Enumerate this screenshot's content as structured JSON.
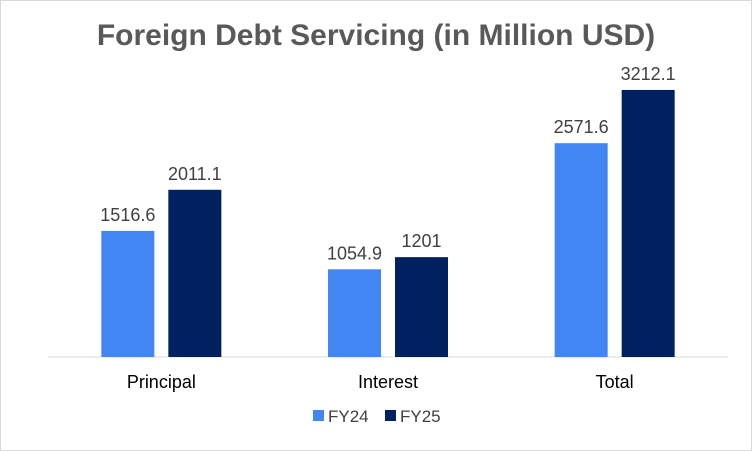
{
  "chart_data": {
    "type": "bar",
    "title": "Foreign Debt Servicing (in Million USD)",
    "categories": [
      "Principal",
      "Interest",
      "Total"
    ],
    "series": [
      {
        "name": "FY24",
        "values": [
          1516.6,
          1054.9,
          2571.6
        ],
        "labels": [
          "1516.6",
          "1054.9",
          "2571.6"
        ],
        "color": "#4286f4"
      },
      {
        "name": "FY25",
        "values": [
          2011.1,
          1201,
          3212.1
        ],
        "labels": [
          "2011.1",
          "1201",
          "3212.1"
        ],
        "color": "#002060"
      }
    ],
    "xlabel": "",
    "ylabel": "",
    "ylim": [
      0,
      3500
    ],
    "grid": false,
    "legend": "bottom"
  }
}
